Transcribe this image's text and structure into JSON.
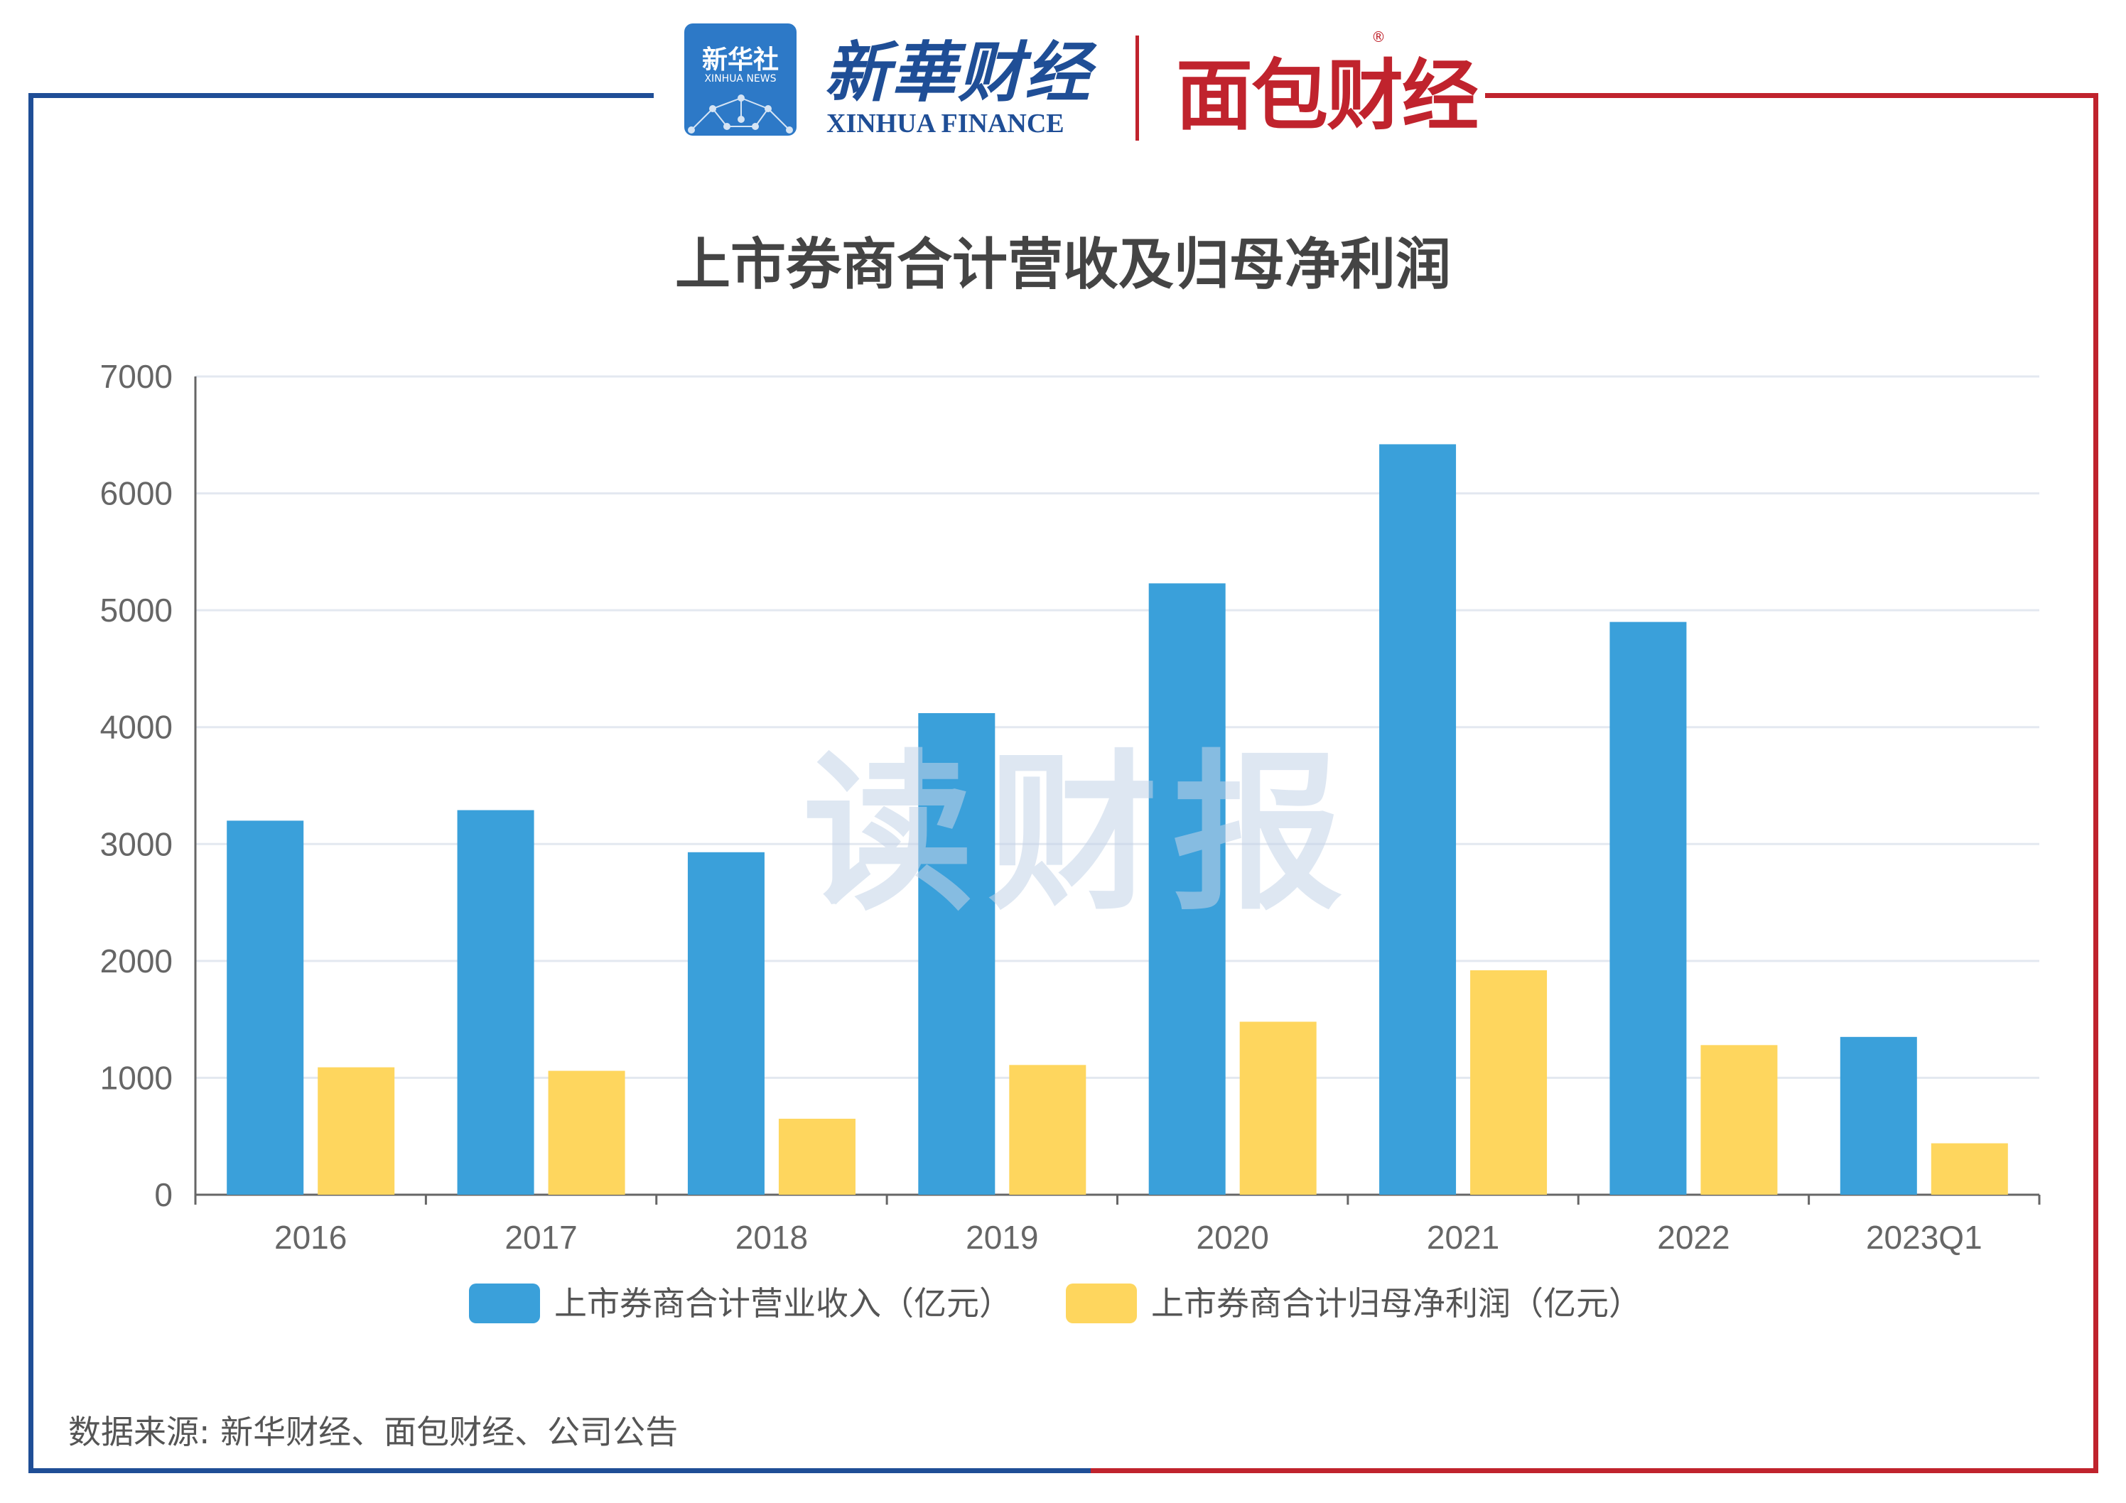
{
  "header": {
    "xinhua_badge_cn": "新华社",
    "xinhua_badge_en": "XINHUA NEWS",
    "xinhua_finance_cn": "新華财经",
    "xinhua_finance_en": "XINHUA FINANCE",
    "mianbao": "面包财经",
    "registered_mark": "®"
  },
  "watermark": "读财报",
  "source": "数据来源: 新华财经、面包财经、公司公告",
  "colors": {
    "revenue": "#3aa0da",
    "profit": "#fed65e",
    "frame_left": "#1f4e96",
    "frame_right": "#c0232d"
  },
  "chart_data": {
    "type": "bar",
    "title": "上市券商合计营收及归母净利润",
    "categories": [
      "2016",
      "2017",
      "2018",
      "2019",
      "2020",
      "2021",
      "2022",
      "2023Q1"
    ],
    "series": [
      {
        "name": "上市券商合计营业收入（亿元）",
        "values": [
          3200,
          3290,
          2930,
          4120,
          5230,
          6420,
          4900,
          1350
        ]
      },
      {
        "name": "上市券商合计归母净利润（亿元）",
        "values": [
          1090,
          1060,
          650,
          1110,
          1480,
          1920,
          1280,
          440
        ]
      }
    ],
    "ylim": [
      0,
      7000
    ],
    "yticks": [
      0,
      1000,
      2000,
      3000,
      4000,
      5000,
      6000,
      7000
    ],
    "grid": true,
    "legend": "bottom"
  }
}
